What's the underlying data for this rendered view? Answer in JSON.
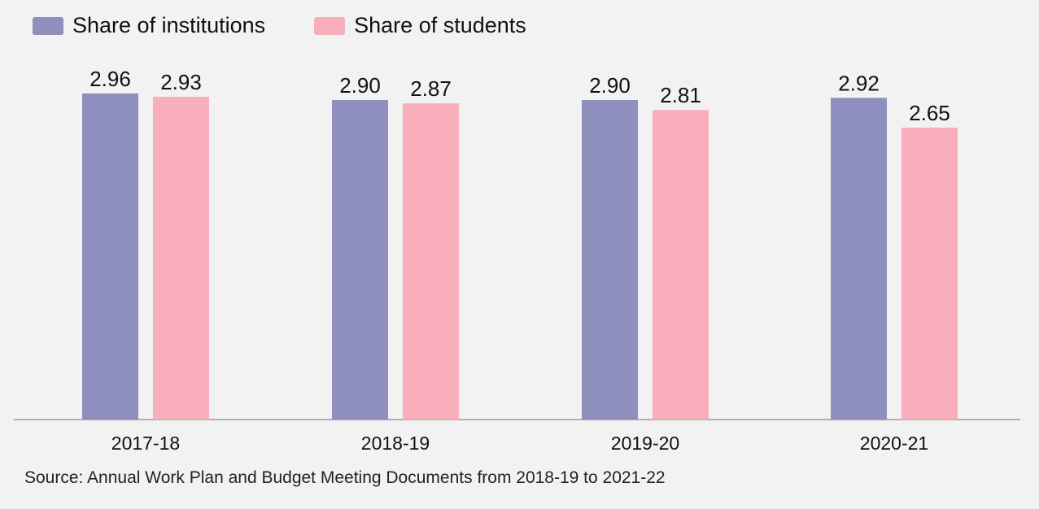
{
  "colors": {
    "background": "#f2f2f2",
    "institutions": "#8f8fbd",
    "students": "#f9aebb",
    "axis": "#9a9a9a"
  },
  "legend": {
    "institutions_label": "Share of institutions",
    "students_label": "Share of students"
  },
  "source": "Source: Annual Work Plan and Budget Meeting Documents from 2018-19 to 2021-22",
  "chart_data": {
    "type": "bar",
    "categories": [
      "2017-18",
      "2018-19",
      "2019-20",
      "2020-21"
    ],
    "series": [
      {
        "name": "Share of institutions",
        "values": [
          2.96,
          2.9,
          2.9,
          2.92
        ],
        "labels": [
          "2.96",
          "2.90",
          "2.90",
          "2.92"
        ]
      },
      {
        "name": "Share of students",
        "values": [
          2.93,
          2.87,
          2.81,
          2.65
        ],
        "labels": [
          "2.93",
          "2.87",
          "2.81",
          "2.65"
        ]
      }
    ],
    "ylim": [
      0,
      3
    ],
    "grid": false,
    "legend_position": "top-left",
    "title": "",
    "xlabel": "",
    "ylabel": ""
  }
}
